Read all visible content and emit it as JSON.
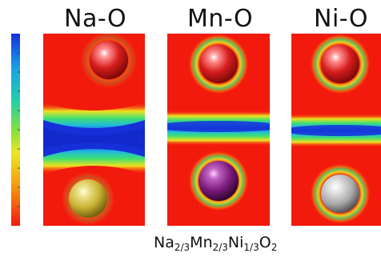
{
  "panels": [
    {
      "title": "Na-O",
      "top_atom_color": "#d81e1e",
      "bottom_atom_color": "#c9b233"
    },
    {
      "title": "Mn-O",
      "top_atom_color": "#d81e1e",
      "bottom_atom_color": "#7a1a7a"
    },
    {
      "title": "Ni-O",
      "top_atom_color": "#d81e1e",
      "bottom_atom_color": "#a8a8a8"
    }
  ],
  "formula": {
    "el1": "Na",
    "sub1": "2/3",
    "el2": "Mn",
    "sub2": "2/3",
    "el3": "Ni",
    "sub3": "1/3",
    "el4": "O",
    "sub4": "2"
  },
  "colors": {
    "background": "#f21a0d",
    "scale_top": "#1a2fd0",
    "scale_bottom": "#f21a0d"
  }
}
